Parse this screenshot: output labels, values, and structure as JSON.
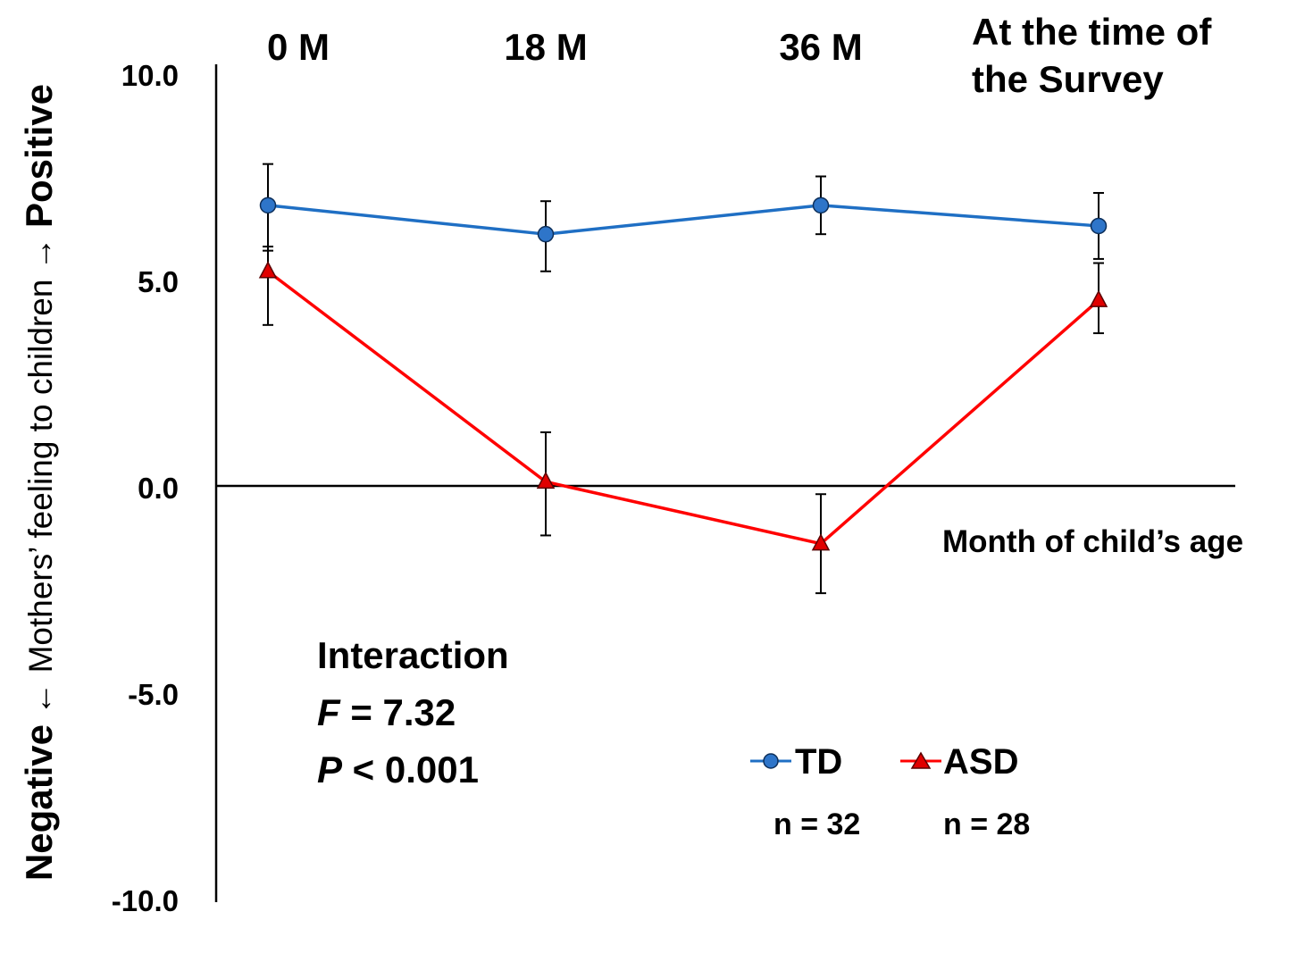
{
  "chart_data": {
    "type": "line",
    "categories": [
      "0 M",
      "18 M",
      "36 M",
      "At the time of the Survey"
    ],
    "category_label_lines": [
      [
        "0 M"
      ],
      [
        "18 M"
      ],
      [
        "36 M"
      ],
      [
        "At the time of",
        "the Survey"
      ]
    ],
    "xlabel": "Month of child’s age",
    "ylabel": {
      "negative": "Negative",
      "middle": "Mothers’ feeling to children",
      "positive": "Positive"
    },
    "ylim": [
      -10.0,
      10.0
    ],
    "yticks": [
      "10.0",
      "5.0",
      "0.0",
      "-5.0",
      "-10.0"
    ],
    "ytick_values": [
      10,
      5,
      0,
      -5,
      -10
    ],
    "grid": false,
    "series": [
      {
        "name": "TD",
        "n_label": "n = 32",
        "color": "#1f6fc4",
        "marker": "circle",
        "marker_fill": "#2e75c9",
        "values": [
          6.8,
          6.1,
          6.8,
          6.3
        ],
        "err_low": [
          5.7,
          5.2,
          6.1,
          5.5
        ],
        "err_high": [
          7.8,
          6.9,
          7.5,
          7.1
        ]
      },
      {
        "name": "ASD",
        "n_label": "n = 28",
        "color": "#ff0000",
        "marker": "triangle",
        "marker_fill": "#e00000",
        "values": [
          5.2,
          0.1,
          -1.4,
          4.5
        ],
        "err_low": [
          3.9,
          -1.2,
          -2.6,
          3.7
        ],
        "err_high": [
          5.8,
          1.3,
          -0.2,
          5.4
        ]
      }
    ],
    "annotation": {
      "title": "Interaction",
      "f_symbol": "F",
      "f_value": " = 7.32",
      "p_symbol": "P",
      "p_value": " < 0.001"
    },
    "legend_position": "bottom-right"
  }
}
